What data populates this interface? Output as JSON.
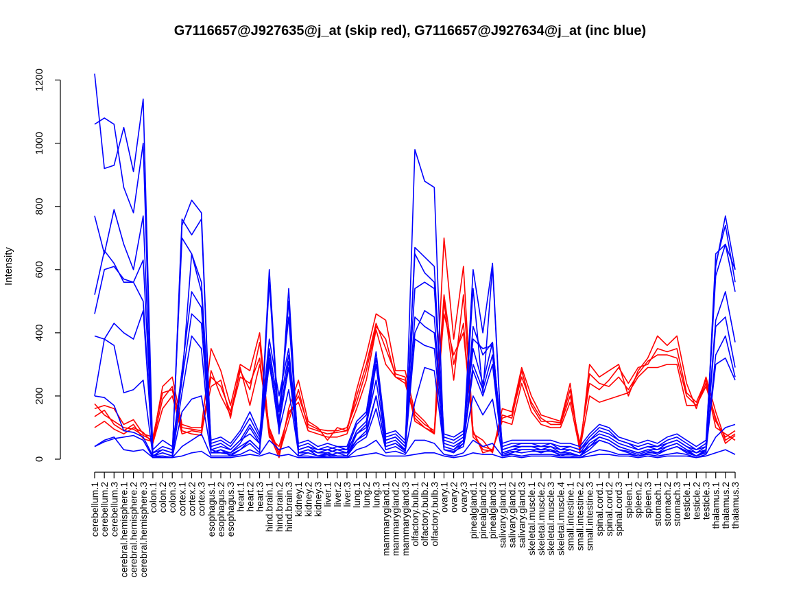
{
  "chart_data": {
    "type": "line",
    "title": "G7116657@J927635@j_at (skip red), G7116657@J927634@j_at (inc blue)",
    "xlabel": "",
    "ylabel": "Intensity",
    "ylim": [
      0,
      1250
    ],
    "yticks": [
      0,
      200,
      400,
      600,
      800,
      1000,
      1200
    ],
    "grid": false,
    "categories": [
      "cerebellum.1",
      "cerebellum.2",
      "cerebellum.3",
      "cerebral.hemisphere.1",
      "cerebral.hemisphere.2",
      "cerebral.hemisphere.3",
      "colon.1",
      "colon.2",
      "colon.3",
      "cortex.1",
      "cortex.2",
      "cortex.3",
      "esophagus.1",
      "esophagus.2",
      "esophagus.3",
      "heart.1",
      "heart.2",
      "heart.3",
      "hind.brain.1",
      "hind.brain.2",
      "hind.brain.3",
      "kidney.1",
      "kidney.2",
      "kidney.3",
      "liver.1",
      "liver.2",
      "liver.3",
      "lung.1",
      "lung.2",
      "lung.3",
      "mammarygland.1",
      "mammarygland.2",
      "mammarygland.3",
      "olfactory.bulb.1",
      "olfactory.bulb.2",
      "olfactory.bulb.3",
      "ovary.1",
      "ovary.2",
      "ovary.3",
      "pinealgland.1",
      "pinealgland.2",
      "pinealgland.3",
      "salivary.gland.1",
      "salivary.gland.2",
      "salivary.gland.3",
      "skeletal.muscle.1",
      "skeletal.muscle.2",
      "skeletal.muscle.3",
      "skeletal.muscle.4",
      "small.intestine.1",
      "small.intestine.2",
      "small.intestine.3",
      "spinal.cord.1",
      "spinal.cord.2",
      "spinal.cord.3",
      "spleen.1",
      "spleen.2",
      "spleen.3",
      "stomach.1",
      "stomach.2",
      "stomach.3",
      "testicle.1",
      "testicle.2",
      "testicle.3",
      "thalamus.1",
      "thalamus.2",
      "thalamus.3"
    ],
    "colors": {
      "skip": "#ff0000",
      "inc": "#0000ff"
    },
    "series": [
      {
        "color": "red",
        "values": [
          175,
          140,
          120,
          100,
          95,
          75,
          60,
          230,
          260,
          110,
          100,
          100,
          350,
          280,
          170,
          300,
          280,
          400,
          80,
          5,
          160,
          250,
          120,
          100,
          60,
          100,
          90,
          220,
          330,
          460,
          440,
          280,
          280,
          150,
          120,
          80,
          700,
          380,
          610,
          80,
          60,
          20,
          160,
          150,
          290,
          200,
          140,
          130,
          120,
          240,
          20,
          300,
          260,
          280,
          300,
          200,
          280,
          320,
          390,
          360,
          390,
          240,
          160,
          260,
          150,
          60,
          80
        ]
      },
      {
        "color": "red",
        "values": [
          160,
          170,
          160,
          110,
          125,
          80,
          70,
          210,
          220,
          90,
          80,
          75,
          280,
          200,
          140,
          260,
          240,
          320,
          70,
          40,
          140,
          200,
          110,
          95,
          90,
          90,
          100,
          180,
          280,
          420,
          380,
          260,
          250,
          140,
          110,
          90,
          520,
          300,
          430,
          70,
          40,
          30,
          130,
          140,
          260,
          180,
          130,
          110,
          110,
          200,
          50,
          240,
          220,
          250,
          290,
          240,
          290,
          300,
          350,
          340,
          350,
          210,
          180,
          250,
          120,
          70,
          90
        ]
      },
      {
        "color": "red",
        "values": [
          100,
          120,
          95,
          80,
          100,
          85,
          50,
          160,
          200,
          80,
          90,
          85,
          230,
          250,
          130,
          290,
          170,
          300,
          100,
          20,
          150,
          180,
          90,
          80,
          70,
          70,
          80,
          160,
          250,
          410,
          300,
          260,
          240,
          130,
          100,
          80,
          460,
          330,
          400,
          90,
          20,
          30,
          120,
          110,
          240,
          150,
          110,
          100,
          100,
          180,
          30,
          200,
          180,
          190,
          200,
          210,
          260,
          290,
          290,
          300,
          300,
          170,
          170,
          240,
          100,
          80,
          60
        ]
      },
      {
        "color": "red",
        "values": [
          135,
          155,
          110,
          90,
          110,
          65,
          55,
          190,
          230,
          100,
          95,
          90,
          260,
          230,
          150,
          280,
          220,
          370,
          90,
          15,
          120,
          220,
          100,
          90,
          80,
          85,
          90,
          200,
          300,
          430,
          350,
          270,
          260,
          120,
          100,
          85,
          500,
          250,
          520,
          85,
          30,
          25,
          140,
          130,
          280,
          170,
          120,
          120,
          115,
          220,
          35,
          270,
          240,
          230,
          260,
          220,
          270,
          310,
          330,
          330,
          320,
          200,
          170,
          230,
          130,
          50,
          75
        ]
      },
      {
        "color": "blue",
        "values": [
          1220,
          920,
          930,
          1050,
          910,
          1140,
          10,
          20,
          10,
          760,
          710,
          760,
          20,
          30,
          10,
          30,
          50,
          20,
          560,
          80,
          540,
          10,
          20,
          10,
          10,
          20,
          10,
          50,
          70,
          160,
          30,
          40,
          20,
          980,
          880,
          860,
          30,
          20,
          50,
          540,
          210,
          610,
          10,
          20,
          30,
          30,
          20,
          30,
          10,
          20,
          10,
          30,
          60,
          50,
          30,
          20,
          10,
          20,
          20,
          30,
          40,
          20,
          10,
          20,
          610,
          770,
          600
        ]
      },
      {
        "color": "blue",
        "values": [
          1060,
          1080,
          1060,
          860,
          780,
          1000,
          5,
          10,
          5,
          740,
          820,
          780,
          30,
          20,
          20,
          40,
          60,
          30,
          600,
          100,
          500,
          20,
          30,
          20,
          20,
          30,
          20,
          60,
          80,
          200,
          40,
          50,
          30,
          670,
          640,
          610,
          40,
          30,
          60,
          600,
          400,
          620,
          20,
          30,
          40,
          40,
          30,
          40,
          20,
          30,
          20,
          40,
          70,
          60,
          40,
          30,
          20,
          30,
          30,
          40,
          50,
          30,
          20,
          30,
          650,
          680,
          600
        ]
      },
      {
        "color": "blue",
        "values": [
          770,
          650,
          790,
          680,
          600,
          770,
          20,
          30,
          20,
          700,
          650,
          560,
          40,
          50,
          30,
          60,
          80,
          50,
          350,
          150,
          450,
          30,
          40,
          30,
          30,
          40,
          30,
          80,
          100,
          300,
          60,
          70,
          40,
          650,
          590,
          560,
          60,
          50,
          70,
          420,
          330,
          370,
          30,
          40,
          50,
          50,
          40,
          50,
          30,
          40,
          30,
          60,
          90,
          80,
          60,
          50,
          30,
          40,
          40,
          50,
          60,
          40,
          30,
          40,
          620,
          740,
          560
        ]
      },
      {
        "color": "blue",
        "values": [
          520,
          660,
          620,
          560,
          560,
          630,
          30,
          60,
          40,
          250,
          650,
          530,
          60,
          70,
          50,
          90,
          150,
          80,
          380,
          200,
          350,
          50,
          60,
          40,
          50,
          40,
          40,
          120,
          150,
          340,
          80,
          90,
          60,
          540,
          560,
          540,
          80,
          70,
          90,
          380,
          350,
          360,
          50,
          60,
          60,
          60,
          60,
          60,
          50,
          50,
          40,
          80,
          110,
          100,
          70,
          60,
          50,
          60,
          50,
          70,
          80,
          60,
          40,
          60,
          580,
          680,
          530
        ]
      },
      {
        "color": "blue",
        "values": [
          460,
          600,
          610,
          570,
          560,
          500,
          20,
          40,
          30,
          280,
          530,
          480,
          50,
          60,
          40,
          80,
          130,
          70,
          340,
          160,
          330,
          40,
          50,
          30,
          40,
          30,
          30,
          110,
          140,
          320,
          70,
          80,
          50,
          450,
          420,
          400,
          70,
          60,
          80,
          350,
          240,
          370,
          40,
          50,
          50,
          50,
          50,
          50,
          40,
          40,
          30,
          70,
          100,
          90,
          60,
          50,
          40,
          50,
          40,
          60,
          70,
          50,
          30,
          50,
          440,
          530,
          370
        ]
      },
      {
        "color": "blue",
        "values": [
          390,
          380,
          430,
          400,
          380,
          470,
          10,
          30,
          20,
          250,
          460,
          430,
          30,
          40,
          30,
          60,
          110,
          60,
          320,
          130,
          310,
          30,
          40,
          20,
          30,
          20,
          20,
          90,
          120,
          300,
          60,
          70,
          40,
          400,
          470,
          450,
          50,
          40,
          60,
          300,
          220,
          330,
          30,
          40,
          40,
          40,
          40,
          40,
          30,
          30,
          20,
          60,
          80,
          70,
          50,
          40,
          30,
          40,
          30,
          50,
          60,
          40,
          20,
          40,
          420,
          450,
          290
        ]
      },
      {
        "color": "blue",
        "values": [
          200,
          380,
          360,
          210,
          220,
          250,
          10,
          20,
          10,
          210,
          390,
          350,
          20,
          30,
          20,
          50,
          100,
          50,
          300,
          110,
          290,
          20,
          30,
          10,
          20,
          10,
          10,
          80,
          110,
          250,
          50,
          60,
          30,
          380,
          360,
          350,
          40,
          30,
          50,
          280,
          200,
          300,
          20,
          30,
          30,
          30,
          30,
          30,
          20,
          20,
          10,
          50,
          70,
          60,
          40,
          30,
          20,
          30,
          20,
          40,
          50,
          30,
          10,
          30,
          330,
          390,
          260
        ]
      },
      {
        "color": "blue",
        "values": [
          200,
          195,
          170,
          90,
          85,
          70,
          10,
          10,
          5,
          150,
          190,
          200,
          20,
          20,
          15,
          30,
          60,
          30,
          310,
          90,
          220,
          20,
          20,
          10,
          15,
          10,
          10,
          60,
          90,
          200,
          40,
          50,
          25,
          180,
          290,
          280,
          30,
          25,
          40,
          200,
          140,
          190,
          15,
          25,
          20,
          25,
          25,
          25,
          15,
          15,
          10,
          40,
          60,
          50,
          30,
          25,
          15,
          25,
          15,
          30,
          40,
          25,
          10,
          25,
          300,
          320,
          250
        ]
      },
      {
        "color": "blue",
        "values": [
          40,
          55,
          65,
          70,
          75,
          60,
          5,
          5,
          5,
          40,
          60,
          80,
          10,
          10,
          10,
          15,
          30,
          15,
          60,
          30,
          40,
          10,
          10,
          5,
          10,
          5,
          5,
          30,
          40,
          60,
          20,
          25,
          15,
          60,
          60,
          50,
          15,
          10,
          20,
          60,
          40,
          50,
          10,
          15,
          10,
          15,
          15,
          15,
          10,
          10,
          5,
          20,
          30,
          25,
          15,
          15,
          10,
          15,
          10,
          15,
          20,
          15,
          5,
          15,
          70,
          100,
          110
        ]
      },
      {
        "color": "blue",
        "values": [
          40,
          60,
          70,
          30,
          25,
          30,
          5,
          5,
          5,
          10,
          20,
          25,
          5,
          5,
          5,
          10,
          15,
          10,
          20,
          10,
          15,
          5,
          5,
          5,
          5,
          5,
          5,
          10,
          15,
          20,
          10,
          10,
          10,
          15,
          20,
          20,
          10,
          5,
          10,
          20,
          15,
          15,
          5,
          10,
          5,
          10,
          10,
          10,
          5,
          5,
          5,
          10,
          15,
          15,
          10,
          10,
          5,
          10,
          5,
          10,
          10,
          10,
          5,
          10,
          20,
          30,
          15
        ]
      }
    ]
  }
}
